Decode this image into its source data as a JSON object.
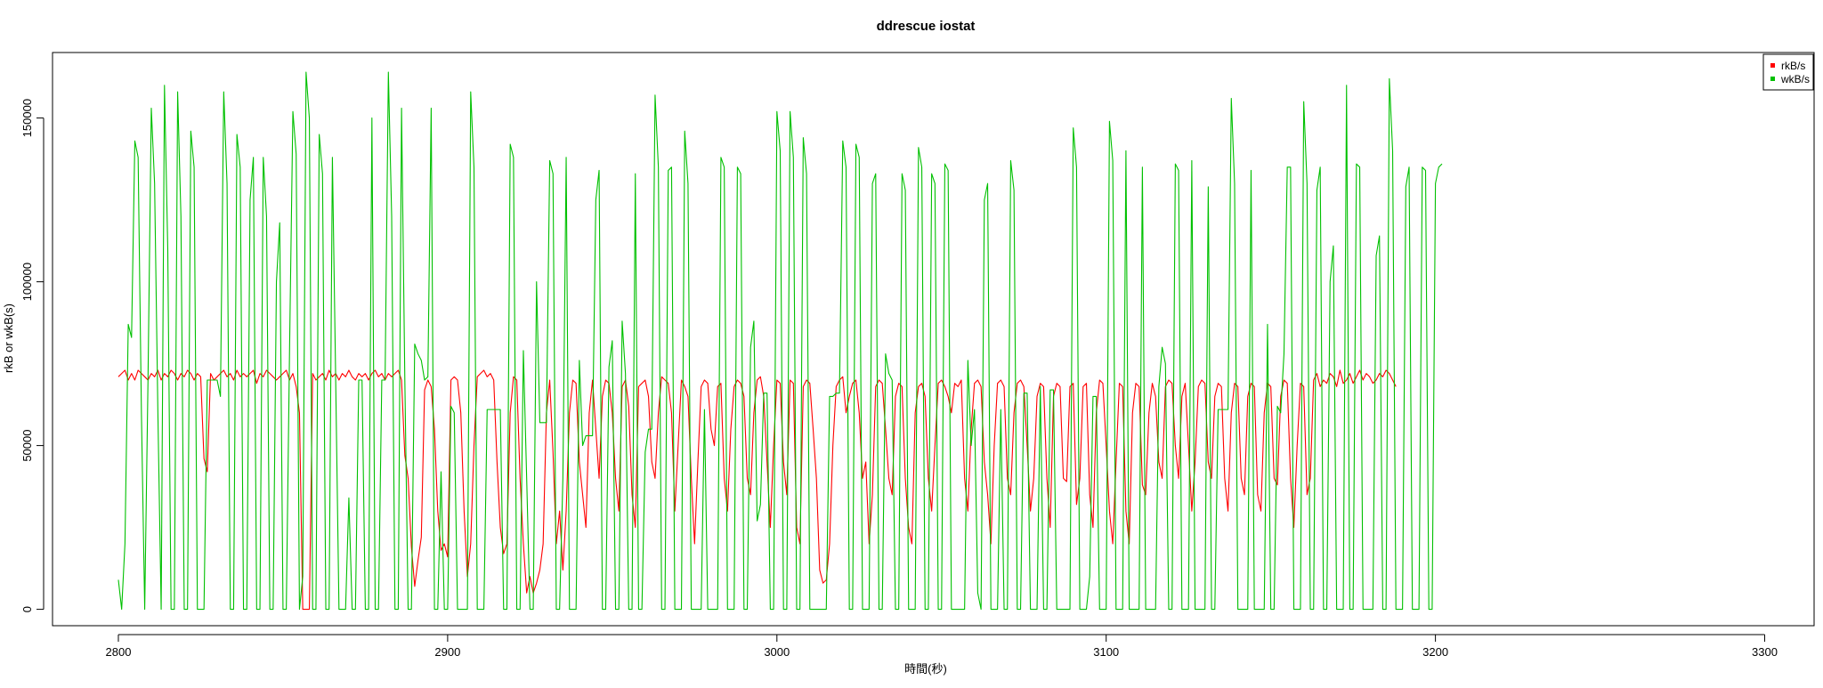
{
  "chart_data": {
    "type": "line",
    "title": "ddrescue iostat",
    "xlabel": "時間(秒)",
    "ylabel": "rkB or wkB(s)",
    "xlim": [
      2780,
      3315
    ],
    "ylim": [
      -5000,
      170000
    ],
    "xticks": [
      2800,
      2900,
      3000,
      3100,
      3200,
      3300
    ],
    "yticks": [
      0,
      50000,
      100000,
      150000
    ],
    "grid": false,
    "legend_position": "top-right",
    "series": [
      {
        "name": "rkB/s",
        "color": "#ff0000",
        "step": 1,
        "x_start": 2800,
        "values": [
          71000,
          72000,
          73000,
          70000,
          72000,
          70000,
          73000,
          72000,
          71000,
          70000,
          72000,
          71000,
          73000,
          70000,
          72000,
          71000,
          73000,
          72000,
          70000,
          72000,
          71000,
          73000,
          72000,
          70000,
          72000,
          71000,
          46000,
          42000,
          72000,
          70000,
          71000,
          72000,
          73000,
          71000,
          72000,
          70000,
          73000,
          71000,
          72000,
          71000,
          72000,
          73000,
          69000,
          72000,
          71000,
          73000,
          72000,
          71000,
          70000,
          71000,
          72000,
          73000,
          70000,
          72000,
          68000,
          60000,
          0,
          0,
          0,
          72000,
          70000,
          71000,
          72000,
          70000,
          73000,
          71000,
          72000,
          70000,
          72000,
          71000,
          73000,
          71000,
          70000,
          72000,
          71000,
          72000,
          70000,
          72000,
          73000,
          71000,
          72000,
          70000,
          72000,
          71000,
          72000,
          73000,
          70000,
          47000,
          40000,
          19000,
          7000,
          15000,
          22000,
          67000,
          70000,
          68000,
          55000,
          30000,
          18000,
          20000,
          16000,
          70000,
          71000,
          70000,
          60000,
          30000,
          10000,
          20000,
          50000,
          71000,
          72000,
          73000,
          71000,
          72000,
          70000,
          45000,
          25000,
          17000,
          20000,
          60000,
          71000,
          70000,
          40000,
          20000,
          5000,
          10000,
          5000,
          8000,
          12000,
          20000,
          60000,
          70000,
          48000,
          20000,
          30000,
          12000,
          30000,
          60000,
          70000,
          69000,
          45000,
          35000,
          25000,
          60000,
          70000,
          55000,
          40000,
          65000,
          70000,
          69000,
          60000,
          40000,
          30000,
          68000,
          70000,
          62000,
          35000,
          25000,
          68000,
          69000,
          70000,
          65000,
          45000,
          40000,
          60000,
          71000,
          70000,
          69000,
          60000,
          30000,
          50000,
          70000,
          68000,
          65000,
          40000,
          20000,
          45000,
          68000,
          70000,
          69000,
          55000,
          50000,
          68000,
          69000,
          40000,
          30000,
          55000,
          68000,
          70000,
          69000,
          65000,
          40000,
          35000,
          60000,
          70000,
          71000,
          65000,
          45000,
          25000,
          50000,
          70000,
          69000,
          45000,
          35000,
          70000,
          69000,
          25000,
          20000,
          68000,
          70000,
          69000,
          55000,
          40000,
          12000,
          8000,
          9000,
          20000,
          50000,
          68000,
          70000,
          71000,
          60000,
          65000,
          69000,
          70000,
          60000,
          40000,
          45000,
          20000,
          35000,
          68000,
          70000,
          69000,
          55000,
          40000,
          35000,
          65000,
          69000,
          68000,
          40000,
          25000,
          20000,
          60000,
          68000,
          69000,
          65000,
          40000,
          30000,
          50000,
          69000,
          70000,
          68000,
          65000,
          60000,
          69000,
          68000,
          70000,
          40000,
          30000,
          55000,
          69000,
          70000,
          68000,
          45000,
          35000,
          20000,
          50000,
          69000,
          70000,
          68000,
          40000,
          35000,
          60000,
          69000,
          70000,
          68000,
          50000,
          30000,
          40000,
          65000,
          69000,
          68000,
          40000,
          25000,
          65000,
          69000,
          68000,
          40000,
          39000,
          68000,
          69000,
          32000,
          40000,
          68000,
          69000,
          35000,
          25000,
          60000,
          70000,
          69000,
          50000,
          30000,
          20000,
          45000,
          69000,
          68000,
          30000,
          20000,
          60000,
          69000,
          68000,
          38000,
          35000,
          60000,
          69000,
          65000,
          45000,
          40000,
          68000,
          70000,
          69000,
          50000,
          40000,
          65000,
          69000,
          50000,
          30000,
          45000,
          68000,
          70000,
          69000,
          45000,
          40000,
          65000,
          69000,
          68000,
          40000,
          30000,
          60000,
          69000,
          68000,
          40000,
          35000,
          65000,
          69000,
          68000,
          35000,
          30000,
          60000,
          69000,
          68000,
          40000,
          38000,
          65000,
          70000,
          69000,
          40000,
          25000,
          50000,
          69000,
          68000,
          35000,
          40000,
          70000,
          72000,
          68000,
          70000,
          69000,
          72000,
          71000,
          68000,
          73000,
          69000,
          70000,
          72000,
          69000,
          71000,
          73000,
          70000,
          72000,
          71000,
          69000,
          70000,
          72000,
          71000,
          73000,
          72000,
          70000,
          68000
        ]
      },
      {
        "name": "wkB/s",
        "color": "#00c000",
        "step": 1,
        "x_start": 2800,
        "values": [
          9000,
          0,
          20000,
          87000,
          83000,
          143000,
          138000,
          60000,
          0,
          70000,
          153000,
          130000,
          60000,
          0,
          160000,
          110000,
          0,
          0,
          158000,
          120000,
          0,
          0,
          146000,
          135000,
          0,
          0,
          0,
          70000,
          70000,
          70000,
          70000,
          65000,
          158000,
          130000,
          0,
          0,
          145000,
          135000,
          0,
          0,
          125000,
          138000,
          0,
          0,
          138000,
          120000,
          0,
          0,
          100000,
          118000,
          0,
          0,
          80000,
          152000,
          139000,
          0,
          10000,
          164000,
          150000,
          0,
          0,
          145000,
          133000,
          0,
          0,
          138000,
          70000,
          0,
          0,
          0,
          34000,
          0,
          0,
          70000,
          70000,
          0,
          0,
          150000,
          0,
          0,
          70000,
          70000,
          164000,
          120000,
          0,
          0,
          153000,
          70000,
          0,
          0,
          81000,
          78000,
          76000,
          70000,
          71000,
          153000,
          0,
          0,
          42000,
          0,
          0,
          62000,
          60000,
          0,
          0,
          0,
          0,
          158000,
          135000,
          0,
          0,
          0,
          61000,
          61000,
          61000,
          61000,
          61000,
          0,
          0,
          142000,
          138000,
          0,
          0,
          79000,
          40000,
          0,
          0,
          100000,
          57000,
          57000,
          57000,
          137000,
          133000,
          0,
          0,
          40000,
          138000,
          0,
          0,
          0,
          76000,
          50000,
          53000,
          53000,
          53000,
          125000,
          134000,
          0,
          0,
          74000,
          82000,
          0,
          0,
          88000,
          72000,
          0,
          0,
          133000,
          0,
          0,
          48000,
          55000,
          55000,
          157000,
          135000,
          0,
          0,
          134000,
          135000,
          0,
          0,
          0,
          146000,
          130000,
          0,
          0,
          0,
          0,
          61000,
          0,
          0,
          0,
          0,
          138000,
          135000,
          0,
          0,
          0,
          135000,
          133000,
          0,
          0,
          80000,
          88000,
          27000,
          32000,
          66000,
          66000,
          0,
          0,
          152000,
          140000,
          0,
          0,
          152000,
          138000,
          0,
          0,
          144000,
          133000,
          0,
          0,
          0,
          0,
          0,
          0,
          65000,
          65000,
          66000,
          66000,
          143000,
          135000,
          0,
          0,
          142000,
          138000,
          0,
          0,
          0,
          130000,
          133000,
          0,
          0,
          78000,
          72000,
          70000,
          0,
          0,
          133000,
          128000,
          0,
          0,
          0,
          141000,
          135000,
          0,
          0,
          133000,
          130000,
          0,
          0,
          136000,
          134000,
          0,
          0,
          0,
          0,
          0,
          76000,
          50000,
          61000,
          5000,
          0,
          125000,
          130000,
          0,
          0,
          0,
          61000,
          0,
          0,
          137000,
          128000,
          0,
          0,
          66000,
          66000,
          0,
          0,
          0,
          68000,
          0,
          0,
          67000,
          67000,
          0,
          0,
          0,
          0,
          0,
          147000,
          135000,
          0,
          0,
          0,
          10000,
          65000,
          65000,
          0,
          0,
          0,
          149000,
          137000,
          0,
          0,
          0,
          140000,
          0,
          0,
          0,
          0,
          135000,
          0,
          0,
          0,
          0,
          68000,
          80000,
          75000,
          0,
          0,
          136000,
          134000,
          0,
          0,
          0,
          137000,
          0,
          0,
          0,
          0,
          129000,
          0,
          0,
          61000,
          61000,
          61000,
          61000,
          156000,
          130000,
          0,
          0,
          0,
          0,
          134000,
          0,
          0,
          0,
          0,
          87000,
          0,
          0,
          62000,
          60000,
          78000,
          135000,
          135000,
          0,
          0,
          0,
          155000,
          130000,
          0,
          0,
          128000,
          135000,
          0,
          0,
          100000,
          111000,
          0,
          0,
          0,
          160000,
          0,
          0,
          136000,
          135000,
          0,
          0,
          0,
          0,
          108000,
          114000,
          0,
          0,
          162000,
          140000,
          0,
          0,
          0,
          129000,
          135000,
          0,
          0,
          0,
          135000,
          134000,
          0,
          0,
          130000,
          135000,
          136000
        ]
      }
    ]
  }
}
